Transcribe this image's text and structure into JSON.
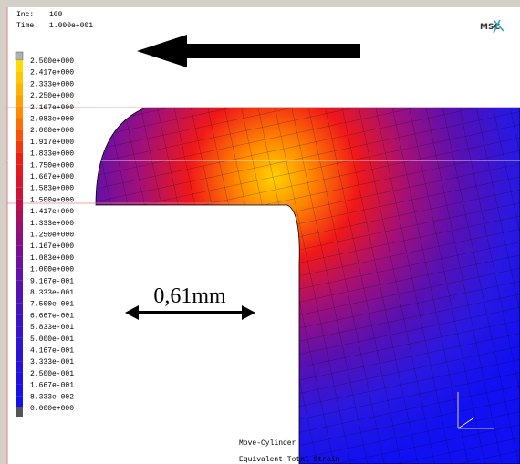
{
  "header": {
    "inc_label": "Inc:",
    "inc_value": "100",
    "time_label": "Time:",
    "time_value": "1.000e+001",
    "logo": "MSC"
  },
  "legend": {
    "labels": [
      "2.500e+000",
      "2.417e+000",
      "2.333e+000",
      "2.250e+000",
      "2.167e+000",
      "2.083e+000",
      "2.000e+000",
      "1.917e+000",
      "1.833e+000",
      "1.750e+000",
      "1.667e+000",
      "1.583e+000",
      "1.500e+000",
      "1.417e+000",
      "1.333e+000",
      "1.250e+000",
      "1.167e+000",
      "1.083e+000",
      "1.000e+000",
      "9.167e-001",
      "8.333e-001",
      "7.500e-001",
      "6.667e-001",
      "5.833e-001",
      "5.000e-001",
      "4.167e-001",
      "3.333e-001",
      "2.500e-001",
      "1.667e-001",
      "8.333e-002",
      "0.000e+000"
    ]
  },
  "annotation": {
    "dimension": "0,61mm"
  },
  "footer": {
    "job": "Move-Cylinder",
    "quantity": "Equivalent Total Strain"
  }
}
